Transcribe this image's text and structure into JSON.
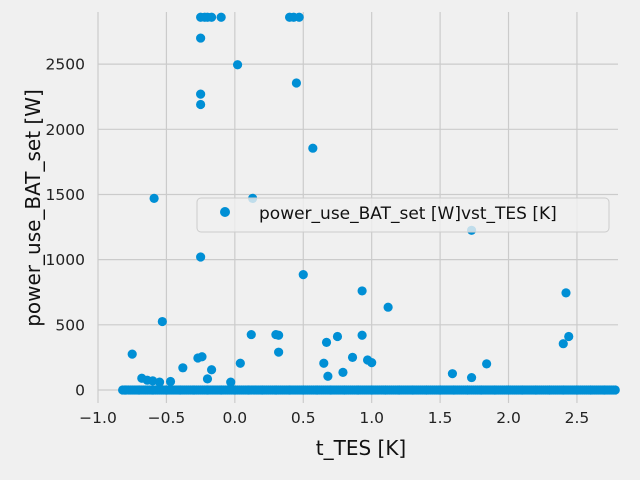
{
  "chart_data": {
    "type": "scatter",
    "title": "",
    "xlabel": "t_TES [K]",
    "ylabel": "power_use_BAT_set [W]",
    "xlim": [
      -1.0,
      2.8
    ],
    "ylim": [
      -100,
      2900
    ],
    "xticks": [
      -1.0,
      -0.5,
      0.0,
      0.5,
      1.0,
      1.5,
      2.0,
      2.5
    ],
    "xtick_labels": [
      "−1.0",
      "−0.5",
      "0.0",
      "0.5",
      "1.0",
      "1.5",
      "2.0",
      "2.5"
    ],
    "yticks": [
      0,
      500,
      1000,
      1500,
      2000,
      2500
    ],
    "ytick_labels": [
      "0",
      "500",
      "1000",
      "1500",
      "2000",
      "2500"
    ],
    "grid": true,
    "legend_position": "center-right",
    "colors": {
      "marker": "#008fd5",
      "background": "#f0f0f0",
      "grid": "#cbcbcb"
    },
    "series": [
      {
        "name": "power_use_BAT_set [W]vst_TES [K]",
        "points": [
          [
            -0.25,
            2860
          ],
          [
            -0.22,
            2860
          ],
          [
            -0.2,
            2860
          ],
          [
            -0.17,
            2860
          ],
          [
            -0.1,
            2860
          ],
          [
            0.4,
            2860
          ],
          [
            0.43,
            2860
          ],
          [
            0.47,
            2860
          ],
          [
            -0.25,
            2700
          ],
          [
            0.02,
            2495
          ],
          [
            -0.25,
            2270
          ],
          [
            0.45,
            2355
          ],
          [
            -0.25,
            2190
          ],
          [
            0.57,
            1855
          ],
          [
            -0.59,
            1470
          ],
          [
            0.13,
            1470
          ],
          [
            1.73,
            1225
          ],
          [
            -0.25,
            1020
          ],
          [
            0.5,
            885
          ],
          [
            0.93,
            760
          ],
          [
            2.42,
            745
          ],
          [
            1.12,
            635
          ],
          [
            -0.53,
            525
          ],
          [
            0.12,
            425
          ],
          [
            0.3,
            425
          ],
          [
            0.32,
            420
          ],
          [
            0.93,
            420
          ],
          [
            0.75,
            410
          ],
          [
            2.44,
            410
          ],
          [
            0.67,
            365
          ],
          [
            2.4,
            355
          ],
          [
            -0.75,
            275
          ],
          [
            0.32,
            290
          ],
          [
            -0.27,
            245
          ],
          [
            -0.24,
            255
          ],
          [
            0.86,
            250
          ],
          [
            0.97,
            230
          ],
          [
            1.0,
            210
          ],
          [
            0.04,
            205
          ],
          [
            0.65,
            205
          ],
          [
            1.84,
            200
          ],
          [
            -0.38,
            170
          ],
          [
            -0.17,
            155
          ],
          [
            0.79,
            135
          ],
          [
            1.59,
            125
          ],
          [
            0.68,
            105
          ],
          [
            1.73,
            95
          ],
          [
            -0.68,
            90
          ],
          [
            -0.2,
            85
          ],
          [
            -0.64,
            75
          ],
          [
            -0.6,
            70
          ],
          [
            -0.55,
            60
          ],
          [
            -0.47,
            65
          ],
          [
            -0.03,
            60
          ],
          [
            -0.8,
            0
          ],
          [
            -0.7,
            0
          ],
          [
            -0.6,
            0
          ],
          [
            -0.5,
            0
          ],
          [
            -0.4,
            0
          ],
          [
            -0.3,
            0
          ],
          [
            -0.2,
            0
          ],
          [
            -0.1,
            0
          ],
          [
            0.0,
            0
          ],
          [
            0.1,
            0
          ],
          [
            0.2,
            0
          ],
          [
            0.3,
            0
          ],
          [
            0.4,
            0
          ],
          [
            0.5,
            0
          ],
          [
            0.6,
            0
          ],
          [
            0.7,
            0
          ],
          [
            0.8,
            0
          ],
          [
            0.9,
            0
          ],
          [
            1.0,
            0
          ],
          [
            1.1,
            0
          ],
          [
            1.2,
            0
          ],
          [
            1.3,
            0
          ],
          [
            1.4,
            0
          ],
          [
            1.5,
            0
          ],
          [
            1.6,
            0
          ],
          [
            1.7,
            0
          ],
          [
            1.8,
            0
          ],
          [
            1.9,
            0
          ],
          [
            2.0,
            0
          ],
          [
            2.1,
            0
          ],
          [
            2.2,
            0
          ],
          [
            2.3,
            0
          ],
          [
            2.4,
            0
          ],
          [
            2.5,
            0
          ],
          [
            2.6,
            0
          ],
          [
            2.7,
            0
          ],
          [
            2.78,
            0
          ]
        ]
      }
    ]
  }
}
